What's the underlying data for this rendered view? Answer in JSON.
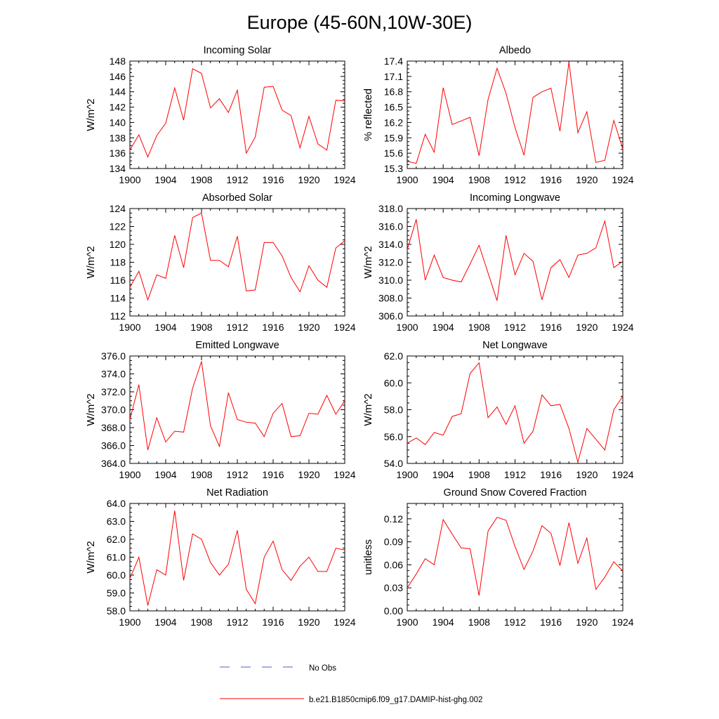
{
  "page": {
    "title": "Europe (45-60N,10W-30E)"
  },
  "legend": {
    "entries": [
      {
        "label": "No Obs",
        "color": "#4b5fd0",
        "dash": true
      },
      {
        "label": "b.e21.B1850cmip6.f09_g17.DAMIP-hist-ghg.002",
        "color": "#ff0000",
        "dash": false
      }
    ]
  },
  "chart_data": [
    {
      "type": "line",
      "title": "Incoming Solar",
      "ylabel": "W/m^2",
      "xlim": [
        1900,
        1924
      ],
      "ylim": [
        134,
        148
      ],
      "xticks": [
        "1900",
        "1904",
        "1908",
        "1912",
        "1916",
        "1920",
        "1924"
      ],
      "yticks": [
        "134",
        "136",
        "138",
        "140",
        "142",
        "144",
        "146",
        "148"
      ],
      "series": [
        {
          "color": "#ff0000",
          "x": [
            1900,
            1901,
            1902,
            1903,
            1904,
            1905,
            1906,
            1907,
            1908,
            1909,
            1910,
            1911,
            1912,
            1913,
            1914,
            1915,
            1916,
            1917,
            1918,
            1919,
            1920,
            1921,
            1922,
            1923,
            1924
          ],
          "values": [
            136.4,
            138.4,
            135.5,
            138.3,
            139.9,
            144.5,
            140.3,
            147.0,
            146.4,
            141.9,
            143.1,
            141.3,
            144.2,
            136.0,
            138.1,
            144.6,
            144.7,
            141.6,
            140.9,
            136.7,
            140.8,
            137.2,
            136.4,
            142.9,
            142.8
          ]
        }
      ]
    },
    {
      "type": "line",
      "title": "Albedo",
      "ylabel": "% reflected",
      "xlim": [
        1900,
        1924
      ],
      "ylim": [
        15.3,
        17.4
      ],
      "xticks": [
        "1900",
        "1904",
        "1908",
        "1912",
        "1916",
        "1920",
        "1924"
      ],
      "yticks": [
        "15.3",
        "15.6",
        "15.9",
        "16.2",
        "16.5",
        "16.8",
        "17.1",
        "17.4"
      ],
      "series": [
        {
          "color": "#ff0000",
          "x": [
            1900,
            1901,
            1902,
            1903,
            1904,
            1905,
            1906,
            1907,
            1908,
            1909,
            1910,
            1911,
            1912,
            1913,
            1914,
            1915,
            1916,
            1917,
            1918,
            1919,
            1920,
            1921,
            1922,
            1923,
            1924
          ],
          "values": [
            15.44,
            15.4,
            15.97,
            15.62,
            16.88,
            16.16,
            16.23,
            16.3,
            15.55,
            16.65,
            17.26,
            16.77,
            16.1,
            15.56,
            16.69,
            16.8,
            16.87,
            16.03,
            17.38,
            16.0,
            16.41,
            15.42,
            15.46,
            16.24,
            15.68
          ]
        }
      ]
    },
    {
      "type": "line",
      "title": "Absorbed Solar",
      "ylabel": "W/m^2",
      "xlim": [
        1900,
        1924
      ],
      "ylim": [
        112,
        124
      ],
      "xticks": [
        "1900",
        "1904",
        "1908",
        "1912",
        "1916",
        "1920",
        "1924"
      ],
      "yticks": [
        "112",
        "114",
        "116",
        "118",
        "120",
        "122",
        "124"
      ],
      "series": [
        {
          "color": "#ff0000",
          "x": [
            1900,
            1901,
            1902,
            1903,
            1904,
            1905,
            1906,
            1907,
            1908,
            1909,
            1910,
            1911,
            1912,
            1913,
            1914,
            1915,
            1916,
            1917,
            1918,
            1919,
            1920,
            1921,
            1922,
            1923,
            1924
          ],
          "values": [
            115.2,
            117.0,
            113.8,
            116.6,
            116.2,
            121.0,
            117.4,
            123.0,
            123.5,
            118.2,
            118.2,
            117.5,
            120.9,
            114.8,
            114.9,
            120.2,
            120.2,
            118.7,
            116.3,
            114.7,
            117.6,
            116.0,
            115.2,
            119.6,
            120.4
          ]
        }
      ]
    },
    {
      "type": "line",
      "title": "Incoming Longwave",
      "ylabel": "W/m^2",
      "xlim": [
        1900,
        1924
      ],
      "ylim": [
        306.0,
        318.0
      ],
      "xticks": [
        "1900",
        "1904",
        "1908",
        "1912",
        "1916",
        "1920",
        "1924"
      ],
      "yticks": [
        "306.0",
        "308.0",
        "310.0",
        "312.0",
        "314.0",
        "316.0",
        "318.0"
      ],
      "series": [
        {
          "color": "#ff0000",
          "x": [
            1900,
            1901,
            1902,
            1903,
            1904,
            1905,
            1906,
            1907,
            1908,
            1909,
            1910,
            1911,
            1912,
            1913,
            1914,
            1915,
            1916,
            1917,
            1918,
            1919,
            1920,
            1921,
            1922,
            1923,
            1924
          ],
          "values": [
            313.4,
            316.8,
            310.0,
            312.8,
            310.3,
            310.0,
            309.8,
            311.8,
            313.9,
            310.8,
            307.7,
            315.0,
            310.6,
            313.0,
            312.1,
            307.8,
            311.4,
            312.3,
            310.3,
            312.8,
            313.0,
            313.6,
            316.6,
            311.4,
            312.1
          ]
        }
      ]
    },
    {
      "type": "line",
      "title": "Emitted Longwave",
      "ylabel": "W/m^2",
      "xlim": [
        1900,
        1924
      ],
      "ylim": [
        364.0,
        376.0
      ],
      "xticks": [
        "1900",
        "1904",
        "1908",
        "1912",
        "1916",
        "1920",
        "1924"
      ],
      "yticks": [
        "364.0",
        "366.0",
        "368.0",
        "370.0",
        "372.0",
        "374.0",
        "376.0"
      ],
      "series": [
        {
          "color": "#ff0000",
          "x": [
            1900,
            1901,
            1902,
            1903,
            1904,
            1905,
            1906,
            1907,
            1908,
            1909,
            1910,
            1911,
            1912,
            1913,
            1914,
            1915,
            1916,
            1917,
            1918,
            1919,
            1920,
            1921,
            1922,
            1923,
            1924
          ],
          "values": [
            368.9,
            372.8,
            365.5,
            369.1,
            366.4,
            367.6,
            367.5,
            372.4,
            375.4,
            368.2,
            365.9,
            371.9,
            368.9,
            368.6,
            368.5,
            367.0,
            369.6,
            370.7,
            367.0,
            367.1,
            369.6,
            369.5,
            371.6,
            369.5,
            371.0
          ]
        }
      ]
    },
    {
      "type": "line",
      "title": "Net Longwave",
      "ylabel": "W/m^2",
      "xlim": [
        1900,
        1924
      ],
      "ylim": [
        54.0,
        62.0
      ],
      "xticks": [
        "1900",
        "1904",
        "1908",
        "1912",
        "1916",
        "1920",
        "1924"
      ],
      "yticks": [
        "54.0",
        "56.0",
        "58.0",
        "60.0",
        "62.0"
      ],
      "series": [
        {
          "color": "#ff0000",
          "x": [
            1900,
            1901,
            1902,
            1903,
            1904,
            1905,
            1906,
            1907,
            1908,
            1909,
            1910,
            1911,
            1912,
            1913,
            1914,
            1915,
            1916,
            1917,
            1918,
            1919,
            1920,
            1921,
            1922,
            1923,
            1924
          ],
          "values": [
            55.5,
            55.9,
            55.4,
            56.3,
            56.1,
            57.5,
            57.7,
            60.7,
            61.5,
            57.4,
            58.2,
            56.9,
            58.3,
            55.5,
            56.4,
            59.1,
            58.3,
            58.4,
            56.6,
            54.1,
            56.6,
            55.8,
            55.0,
            58.0,
            59.0
          ]
        }
      ]
    },
    {
      "type": "line",
      "title": "Net Radiation",
      "ylabel": "W/m^2",
      "xlim": [
        1900,
        1924
      ],
      "ylim": [
        58.0,
        64.0
      ],
      "xticks": [
        "1900",
        "1904",
        "1908",
        "1912",
        "1916",
        "1920",
        "1924"
      ],
      "yticks": [
        "58.0",
        "59.0",
        "60.0",
        "61.0",
        "62.0",
        "63.0",
        "64.0"
      ],
      "series": [
        {
          "color": "#ff0000",
          "x": [
            1900,
            1901,
            1902,
            1903,
            1904,
            1905,
            1906,
            1907,
            1908,
            1909,
            1910,
            1911,
            1912,
            1913,
            1914,
            1915,
            1916,
            1917,
            1918,
            1919,
            1920,
            1921,
            1922,
            1923,
            1924
          ],
          "values": [
            59.8,
            61.0,
            58.3,
            60.3,
            60.0,
            63.6,
            59.7,
            62.3,
            62.0,
            60.7,
            60.0,
            60.6,
            62.5,
            59.2,
            58.4,
            61.0,
            61.9,
            60.3,
            59.7,
            60.5,
            61.0,
            60.2,
            60.2,
            61.5,
            61.4
          ]
        }
      ]
    },
    {
      "type": "line",
      "title": "Ground Snow Covered Fraction",
      "ylabel": "unitless",
      "xlim": [
        1900,
        1924
      ],
      "ylim": [
        0.0,
        0.14
      ],
      "xticks": [
        "1900",
        "1904",
        "1908",
        "1912",
        "1916",
        "1920",
        "1924"
      ],
      "yticks": [
        "0.00",
        "0.03",
        "0.06",
        "0.09",
        "0.12"
      ],
      "ytickvals": [
        0.0,
        0.03,
        0.06,
        0.09,
        0.12
      ],
      "series": [
        {
          "color": "#ff0000",
          "x": [
            1900,
            1901,
            1902,
            1903,
            1904,
            1905,
            1906,
            1907,
            1908,
            1909,
            1910,
            1911,
            1912,
            1913,
            1914,
            1915,
            1916,
            1917,
            1918,
            1919,
            1920,
            1921,
            1922,
            1923,
            1924
          ],
          "values": [
            0.03,
            0.048,
            0.068,
            0.06,
            0.119,
            0.1,
            0.082,
            0.081,
            0.02,
            0.104,
            0.122,
            0.118,
            0.084,
            0.054,
            0.078,
            0.111,
            0.101,
            0.059,
            0.115,
            0.062,
            0.095,
            0.028,
            0.044,
            0.064,
            0.052
          ]
        }
      ]
    }
  ]
}
